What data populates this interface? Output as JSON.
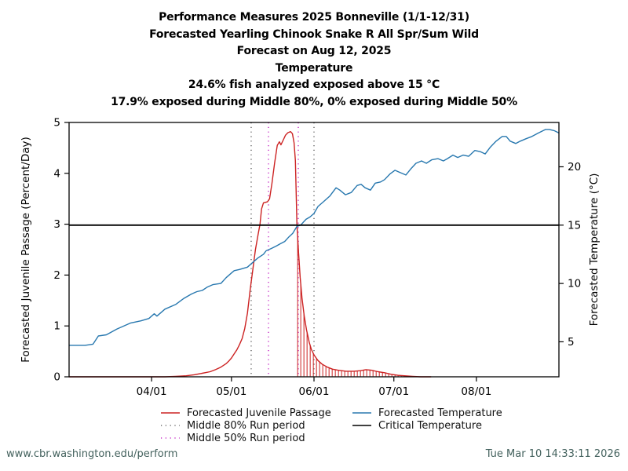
{
  "footer": {
    "url": "www.cbr.washington.edu/perform",
    "timestamp": "Tue Mar 10 14:33:11 2026",
    "color": "#44625e"
  },
  "chart_data": {
    "type": "line",
    "title_lines": [
      "Performance Measures 2025 Bonneville (1/1-12/31)",
      "Forecasted Yearling Chinook Snake R All Spr/Sum Wild",
      "Forecast on Aug 12, 2025",
      "Temperature",
      "24.6% fish analyzed exposed above 15 °C",
      "17.9% exposed during Middle 80%, 0% exposed during Middle 50%"
    ],
    "x_axis": {
      "unit": "day-of-year",
      "range": [
        60,
        244
      ],
      "ticks": [
        {
          "doy": 91,
          "label": "04/01"
        },
        {
          "doy": 121,
          "label": "05/01"
        },
        {
          "doy": 152,
          "label": "06/01"
        },
        {
          "doy": 182,
          "label": "07/01"
        },
        {
          "doy": 213,
          "label": "08/01"
        }
      ]
    },
    "left_axis": {
      "label": "Forecasted Juvenile Passage (Percent/Day)",
      "range": [
        0,
        5
      ],
      "ticks": [
        0,
        1,
        2,
        3,
        4,
        5
      ]
    },
    "right_axis": {
      "label": "Forecasted Temperature (°C)",
      "range": [
        2.0,
        23.8
      ],
      "ticks": [
        5,
        10,
        15,
        20
      ]
    },
    "critical_temperature_c": 15,
    "middle80_run_period": {
      "start_doy": 128.4,
      "end_doy": 152.0,
      "color": "#6a6a6a",
      "style": "dotted"
    },
    "middle50_run_period": {
      "start_doy": 134.9,
      "end_doy": 146.1,
      "color": "#c832c8",
      "style": "dotted"
    },
    "exposure_hatch": {
      "start_doy": 145.6,
      "end_doy": 191.0,
      "step_days": 1.18,
      "color": "#cc2222"
    },
    "series": [
      {
        "name": "Forecasted Juvenile Passage",
        "axis": "left",
        "color": "#cc2222",
        "points": [
          [
            60,
            0
          ],
          [
            96,
            0
          ],
          [
            100,
            0.01
          ],
          [
            104,
            0.02
          ],
          [
            107,
            0.04
          ],
          [
            110,
            0.07
          ],
          [
            113,
            0.1
          ],
          [
            115,
            0.14
          ],
          [
            117,
            0.19
          ],
          [
            119,
            0.26
          ],
          [
            120,
            0.31
          ],
          [
            121,
            0.37
          ],
          [
            122,
            0.45
          ],
          [
            123,
            0.53
          ],
          [
            124,
            0.63
          ],
          [
            125,
            0.75
          ],
          [
            126,
            0.95
          ],
          [
            127,
            1.25
          ],
          [
            128,
            1.7
          ],
          [
            129,
            2.1
          ],
          [
            130,
            2.5
          ],
          [
            131,
            2.8
          ],
          [
            131.7,
            3.0
          ],
          [
            132.3,
            3.3
          ],
          [
            133,
            3.42
          ],
          [
            134.5,
            3.44
          ],
          [
            135.3,
            3.5
          ],
          [
            136.2,
            3.8
          ],
          [
            137.2,
            4.2
          ],
          [
            138.2,
            4.55
          ],
          [
            139,
            4.62
          ],
          [
            139.6,
            4.56
          ],
          [
            140.5,
            4.66
          ],
          [
            141.3,
            4.75
          ],
          [
            142.2,
            4.8
          ],
          [
            143.2,
            4.82
          ],
          [
            143.9,
            4.78
          ],
          [
            144.5,
            4.6
          ],
          [
            145,
            4.25
          ],
          [
            145.6,
            2.97
          ],
          [
            146.2,
            2.45
          ],
          [
            146.8,
            1.95
          ],
          [
            147.5,
            1.55
          ],
          [
            148.3,
            1.2
          ],
          [
            149.2,
            0.92
          ],
          [
            150.2,
            0.68
          ],
          [
            151,
            0.54
          ],
          [
            152,
            0.43
          ],
          [
            153.5,
            0.32
          ],
          [
            155,
            0.25
          ],
          [
            157,
            0.19
          ],
          [
            159,
            0.15
          ],
          [
            161,
            0.13
          ],
          [
            164,
            0.11
          ],
          [
            167,
            0.11
          ],
          [
            169.5,
            0.12
          ],
          [
            171.5,
            0.14
          ],
          [
            173.5,
            0.13
          ],
          [
            176,
            0.1
          ],
          [
            178.5,
            0.08
          ],
          [
            181,
            0.05
          ],
          [
            183.5,
            0.03
          ],
          [
            186,
            0.02
          ],
          [
            189,
            0.01
          ],
          [
            192,
            0
          ],
          [
            196,
            0
          ]
        ]
      },
      {
        "name": "Forecasted Temperature",
        "axis": "right",
        "color": "#2878af",
        "points": [
          [
            60,
            4.7
          ],
          [
            66,
            4.7
          ],
          [
            69,
            4.8
          ],
          [
            71,
            5.5
          ],
          [
            74,
            5.6
          ],
          [
            78,
            6.1
          ],
          [
            83,
            6.6
          ],
          [
            87,
            6.8
          ],
          [
            90,
            7.0
          ],
          [
            92,
            7.4
          ],
          [
            93,
            7.2
          ],
          [
            96,
            7.8
          ],
          [
            100,
            8.2
          ],
          [
            103,
            8.7
          ],
          [
            106,
            9.1
          ],
          [
            108,
            9.3
          ],
          [
            110,
            9.4
          ],
          [
            112,
            9.7
          ],
          [
            114,
            9.9
          ],
          [
            117,
            10.0
          ],
          [
            119,
            10.5
          ],
          [
            121,
            10.9
          ],
          [
            122,
            11.1
          ],
          [
            124,
            11.2
          ],
          [
            127,
            11.4
          ],
          [
            129,
            11.8
          ],
          [
            131,
            12.2
          ],
          [
            133,
            12.5
          ],
          [
            134,
            12.8
          ],
          [
            136,
            13.0
          ],
          [
            137.8,
            13.2
          ],
          [
            139.3,
            13.4
          ],
          [
            141,
            13.6
          ],
          [
            142.6,
            14.0
          ],
          [
            144,
            14.3
          ],
          [
            145.6,
            14.9
          ],
          [
            147,
            15.0
          ],
          [
            149,
            15.5
          ],
          [
            150.5,
            15.7
          ],
          [
            152,
            16.0
          ],
          [
            153.5,
            16.6
          ],
          [
            155.5,
            17.0
          ],
          [
            158,
            17.5
          ],
          [
            160.3,
            18.2
          ],
          [
            161.7,
            18.0
          ],
          [
            163.8,
            17.6
          ],
          [
            166,
            17.8
          ],
          [
            168.2,
            18.4
          ],
          [
            169.7,
            18.5
          ],
          [
            171.2,
            18.2
          ],
          [
            173.2,
            18.0
          ],
          [
            175,
            18.6
          ],
          [
            177,
            18.7
          ],
          [
            178.5,
            18.9
          ],
          [
            180.6,
            19.4
          ],
          [
            182.4,
            19.7
          ],
          [
            184.4,
            19.5
          ],
          [
            186.5,
            19.3
          ],
          [
            188.3,
            19.8
          ],
          [
            190.3,
            20.3
          ],
          [
            192.4,
            20.5
          ],
          [
            194.2,
            20.3
          ],
          [
            196.2,
            20.6
          ],
          [
            198.6,
            20.7
          ],
          [
            200.6,
            20.5
          ],
          [
            202.1,
            20.7
          ],
          [
            204.2,
            21.0
          ],
          [
            206,
            20.8
          ],
          [
            208,
            21.0
          ],
          [
            210.1,
            20.9
          ],
          [
            212.4,
            21.4
          ],
          [
            214.5,
            21.3
          ],
          [
            216.3,
            21.1
          ],
          [
            218.3,
            21.7
          ],
          [
            220.4,
            22.2
          ],
          [
            222.7,
            22.6
          ],
          [
            224.2,
            22.6
          ],
          [
            225.7,
            22.2
          ],
          [
            227.8,
            22.0
          ],
          [
            229.5,
            22.2
          ],
          [
            231.6,
            22.4
          ],
          [
            233.9,
            22.6
          ],
          [
            236.3,
            22.9
          ],
          [
            239,
            23.2
          ],
          [
            240.4,
            23.2
          ],
          [
            242.2,
            23.1
          ],
          [
            244,
            22.9
          ]
        ]
      }
    ],
    "legend": [
      {
        "label": "Forecasted Juvenile Passage",
        "style": "solid",
        "color": "#cc2222"
      },
      {
        "label": "Middle 80% Run period",
        "style": "dotted",
        "color": "#6a6a6a"
      },
      {
        "label": "Middle 50% Run period",
        "style": "dotted",
        "color": "#c832c8"
      },
      {
        "label": "Forecasted Temperature",
        "style": "solid",
        "color": "#2878af"
      },
      {
        "label": "Critical Temperature",
        "style": "solid",
        "color": "#000000"
      }
    ]
  }
}
